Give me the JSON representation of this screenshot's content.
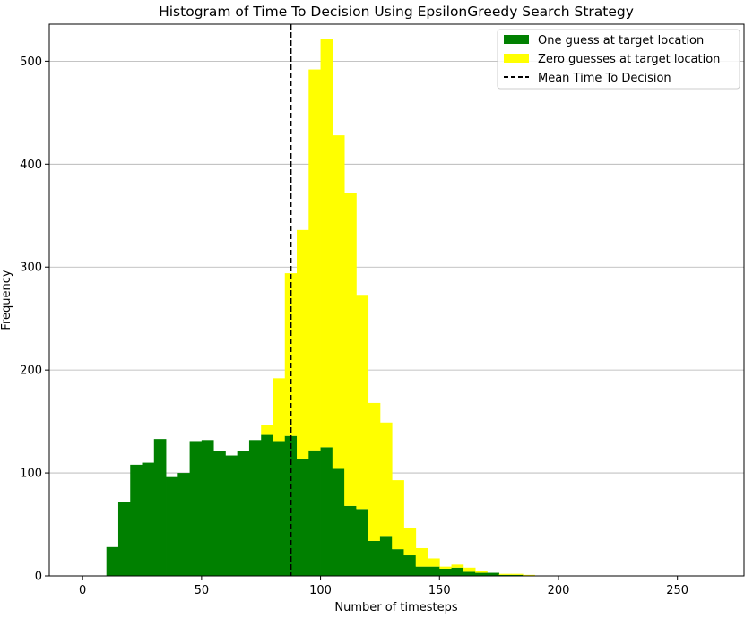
{
  "chart_data": {
    "type": "bar",
    "subtype": "histogram",
    "title": "Histogram of Time To Decision Using EpsilonGreedy Search Strategy",
    "xlabel": "Number of timesteps",
    "ylabel": "Frequency",
    "xlim": [
      -14,
      278
    ],
    "ylim": [
      0,
      536
    ],
    "xticks": [
      0,
      50,
      100,
      150,
      200,
      250
    ],
    "yticks": [
      0,
      100,
      200,
      300,
      400,
      500
    ],
    "grid": "horizontal",
    "legend_position": "top-right",
    "bin_width": 5,
    "bins_start": 10,
    "series": [
      {
        "name": "One guess at target location",
        "color": "#008000",
        "values": [
          28,
          72,
          108,
          110,
          133,
          96,
          100,
          131,
          132,
          121,
          117,
          121,
          132,
          137,
          131,
          136,
          114,
          122,
          125,
          104,
          68,
          65,
          34,
          38,
          26,
          20,
          9,
          9,
          7,
          8,
          4,
          3,
          3,
          1,
          1,
          0,
          0,
          0,
          0,
          0,
          0,
          0,
          0,
          0,
          0,
          0,
          0,
          0,
          0,
          0,
          0,
          0
        ]
      },
      {
        "name": "Zero guesses at target location",
        "color": "#ffff00",
        "values": [
          0,
          0,
          0,
          0,
          0,
          0,
          0,
          0,
          0,
          0,
          0,
          0,
          0,
          10,
          61,
          158,
          222,
          370,
          397,
          324,
          304,
          208,
          134,
          111,
          67,
          27,
          18,
          8,
          2,
          3,
          4,
          2,
          0,
          1,
          1,
          1,
          0,
          0,
          0,
          0,
          0,
          0,
          0,
          0,
          0,
          0,
          0,
          0,
          0,
          0,
          0,
          0
        ]
      }
    ],
    "mean_line": {
      "name": "Mean Time To Decision",
      "x": 87.5,
      "style": "dashed",
      "color": "#000000"
    }
  }
}
